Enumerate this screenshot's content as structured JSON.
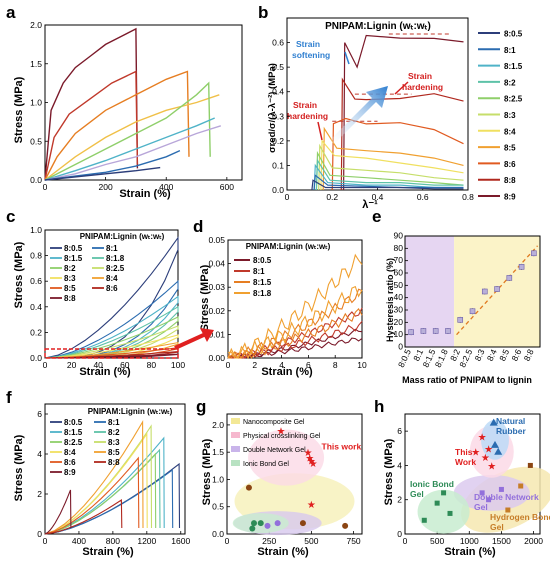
{
  "chart_data": [
    {
      "panel": "a",
      "type": "line",
      "xlabel": "Strain (%)",
      "ylabel": "Stress (MPa)",
      "xlim": [
        0,
        650
      ],
      "ylim": [
        0,
        2.0
      ],
      "xticks": [
        0,
        200,
        400,
        600
      ],
      "yticks": [
        0.0,
        0.5,
        1.0,
        1.5,
        2.0
      ],
      "series": [
        {
          "color": "#7b1a2a",
          "x": [
            0,
            20,
            60,
            100,
            150,
            200,
            250,
            300,
            305
          ],
          "y": [
            0,
            0.9,
            1.25,
            1.45,
            1.6,
            1.75,
            1.85,
            1.95,
            0.15
          ]
        },
        {
          "color": "#c0392b",
          "x": [
            0,
            30,
            80,
            150,
            220,
            300,
            305
          ],
          "y": [
            0,
            0.55,
            0.85,
            1.05,
            1.25,
            1.4,
            0.2
          ]
        },
        {
          "color": "#e67e22",
          "x": [
            0,
            40,
            100,
            200,
            300,
            400,
            470,
            475
          ],
          "y": [
            0,
            0.3,
            0.6,
            0.9,
            1.1,
            1.3,
            1.4,
            0.3
          ]
        },
        {
          "color": "#f0c048",
          "x": [
            0,
            100,
            200,
            300,
            400,
            500,
            575
          ],
          "y": [
            0,
            0.3,
            0.55,
            0.75,
            0.9,
            1.0,
            1.1
          ]
        },
        {
          "color": "#8fcf6a",
          "x": [
            0,
            100,
            200,
            300,
            400,
            500,
            540,
            545
          ],
          "y": [
            0,
            0.2,
            0.4,
            0.6,
            0.8,
            1.1,
            1.25,
            0.3
          ]
        },
        {
          "color": "#4fb3c8",
          "x": [
            0,
            100,
            200,
            300,
            400,
            500,
            560
          ],
          "y": [
            0,
            0.12,
            0.25,
            0.4,
            0.55,
            0.7,
            0.8
          ]
        },
        {
          "color": "#b8a6d9",
          "x": [
            0,
            100,
            200,
            300,
            400,
            500,
            580
          ],
          "y": [
            0,
            0.08,
            0.2,
            0.3,
            0.45,
            0.6,
            0.7
          ]
        },
        {
          "color": "#2b6cb0",
          "x": [
            0,
            100,
            200,
            300,
            400,
            445
          ],
          "y": [
            0,
            0.05,
            0.1,
            0.18,
            0.3,
            0.38
          ]
        },
        {
          "color": "#2c3e7a",
          "x": [
            0,
            100,
            200,
            300,
            380
          ],
          "y": [
            0,
            0.04,
            0.08,
            0.12,
            0.16
          ]
        }
      ]
    },
    {
      "panel": "b",
      "type": "line",
      "title": "PNIPAM:Lignin (wₜ:wₜ)",
      "xlabel": "λ⁻¹",
      "ylabel": "σred/σ/(λ-λ⁻²) (MPa)",
      "xlim": [
        0.0,
        0.8
      ],
      "ylim": [
        0.0,
        0.7
      ],
      "xticks": [
        0.0,
        0.2,
        0.4,
        0.6,
        0.8
      ],
      "yticks": [
        0.0,
        0.1,
        0.2,
        0.3,
        0.4,
        0.5,
        0.6
      ],
      "annotations": [
        "Strain softening",
        "Strain hardening",
        "Strain hardening"
      ],
      "legend": [
        "8:0.5",
        "8:1",
        "8:1.5",
        "8:2",
        "8:2.5",
        "8:3",
        "8:4",
        "8:5",
        "8:6",
        "8:8",
        "8:9"
      ],
      "legend_colors": [
        "#2c3e7a",
        "#2b6cb0",
        "#4fb3c8",
        "#5ec2a8",
        "#8fcf6a",
        "#c6de6a",
        "#f0e060",
        "#f0a030",
        "#e05a20",
        "#b0281e",
        "#7b1a2a"
      ]
    },
    {
      "panel": "c",
      "type": "line",
      "title": "PNIPAM:Lignin (wₜ:wₜ)",
      "xlabel": "Strain (%)",
      "ylabel": "Stress (MPa)",
      "xlim": [
        0,
        100
      ],
      "ylim": [
        0,
        1.0
      ],
      "xticks": [
        0,
        20,
        40,
        60,
        80,
        100
      ],
      "yticks": [
        0.0,
        0.2,
        0.4,
        0.6,
        0.8,
        1.0
      ],
      "legend": [
        "8:0.5",
        "8:1",
        "8:1.5",
        "8:1.8",
        "8:2",
        "8:2.5",
        "8:3",
        "8:4",
        "8:5",
        "8:6",
        "8:8"
      ]
    },
    {
      "panel": "d",
      "type": "line",
      "title": "PNIPAM:Lignin (wₜ:wₜ)",
      "xlabel": "Strain (%)",
      "ylabel": "Stress (MPa)",
      "xlim": [
        0,
        10
      ],
      "ylim": [
        0,
        0.05
      ],
      "xticks": [
        0,
        2,
        4,
        6,
        8,
        10
      ],
      "yticks": [
        0.0,
        0.01,
        0.02,
        0.03,
        0.04,
        0.05
      ],
      "legend": [
        "8:0.5",
        "8:1",
        "8:1.5",
        "8:1.8"
      ]
    },
    {
      "panel": "e",
      "type": "scatter",
      "xlabel": "Mass ratio of PNIPAM to lignin",
      "ylabel": "Hysteresis ratio (%)",
      "ylim": [
        0,
        90
      ],
      "yticks": [
        0,
        10,
        20,
        30,
        40,
        50,
        60,
        70,
        80,
        90
      ],
      "categories": [
        "8:0.5",
        "8:1",
        "8:1.5",
        "8:1.8",
        "8:2",
        "8:2.5",
        "8:3",
        "8:4",
        "8:5",
        "8:6",
        "8:8"
      ],
      "values": [
        12,
        13,
        13,
        13,
        22,
        29,
        45,
        47,
        56,
        65,
        76
      ]
    },
    {
      "panel": "f",
      "type": "line",
      "title": "PNIPAM:Lignin (wₜ:wₜ)",
      "xlabel": "Strain (%)",
      "ylabel": "Stress (MPa)",
      "xlim": [
        0,
        1650
      ],
      "ylim": [
        0,
        6.5
      ],
      "xticks": [
        0,
        400,
        800,
        1200,
        1600
      ],
      "yticks": [
        0,
        2,
        4,
        6
      ],
      "legend": [
        "8:0.5",
        "8:1",
        "8:1.5",
        "8:2",
        "8:2.5",
        "8:3",
        "8:4",
        "8:5",
        "8:6",
        "8:8",
        "8:9"
      ]
    },
    {
      "panel": "g",
      "type": "scatter",
      "xlabel": "Strain (%)",
      "ylabel": "Stress (MPa)",
      "xlim": [
        0,
        800
      ],
      "ylim": [
        0,
        2.2
      ],
      "xticks": [
        0,
        250,
        500,
        750
      ],
      "yticks": [
        0.0,
        0.5,
        1.0,
        1.5,
        2.0
      ],
      "legend": [
        "Nanocomposite Gel",
        "Physical crosslinking Gel",
        "Double Network Gel",
        "Ionic Bond Gel"
      ],
      "annotations": [
        "This work"
      ]
    },
    {
      "panel": "h",
      "type": "scatter",
      "xlabel": "Strain (%)",
      "ylabel": "Stress (MPa)",
      "xlim": [
        0,
        2100
      ],
      "ylim": [
        0,
        7
      ],
      "xticks": [
        0,
        500,
        1000,
        1500,
        2000
      ],
      "yticks": [
        0,
        2,
        4,
        6
      ],
      "annotations": [
        "This Work",
        "Natural Rubber",
        "Ionic Bond Gel",
        "Double Network Gel",
        "Hydrogen Bond Gel"
      ]
    }
  ],
  "labels": {
    "a": "a",
    "b": "b",
    "c": "c",
    "d": "d",
    "e": "e",
    "f": "f",
    "g": "g",
    "h": "h"
  }
}
